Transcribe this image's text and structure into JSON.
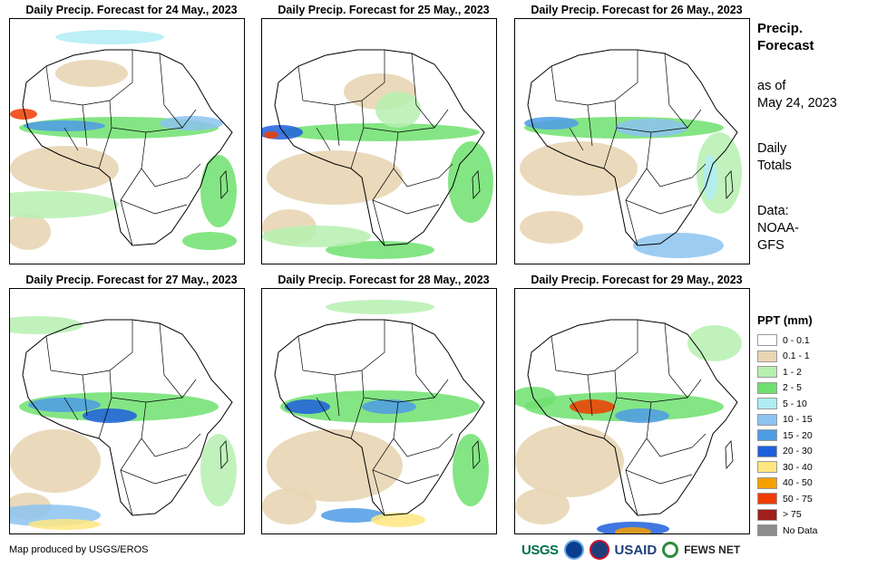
{
  "panels": [
    {
      "title": "Daily Precip. Forecast for 24 May., 2023"
    },
    {
      "title": "Daily Precip. Forecast for 25 May., 2023"
    },
    {
      "title": "Daily Precip. Forecast for 26 May., 2023"
    },
    {
      "title": "Daily Precip. Forecast for 27 May., 2023"
    },
    {
      "title": "Daily Precip. Forecast for 28 May., 2023"
    },
    {
      "title": "Daily Precip. Forecast for 29 May., 2023"
    }
  ],
  "side": {
    "title_line1": "Precip.",
    "title_line2": "Forecast",
    "asof_line1": "as of",
    "asof_line2": "May 24, 2023",
    "daily_line1": "Daily",
    "daily_line2": "Totals",
    "data_line1": "Data:",
    "data_line2": "NOAA-",
    "data_line3": "GFS"
  },
  "legend": {
    "title": "PPT (mm)",
    "items": [
      {
        "label": "0 - 0.1",
        "color": "#ffffff"
      },
      {
        "label": "0.1 - 1",
        "color": "#e8d6b4"
      },
      {
        "label": "1 - 2",
        "color": "#b6f0b0"
      },
      {
        "label": "2 - 5",
        "color": "#6fe06f"
      },
      {
        "label": "5 - 10",
        "color": "#b0ecf4"
      },
      {
        "label": "10 - 15",
        "color": "#8cc3f0"
      },
      {
        "label": "15 - 20",
        "color": "#4e9be6"
      },
      {
        "label": "20 - 30",
        "color": "#1f5fdc"
      },
      {
        "label": "30 - 40",
        "color": "#ffe680"
      },
      {
        "label": "40 - 50",
        "color": "#f5a000"
      },
      {
        "label": "50 - 75",
        "color": "#f03c00"
      },
      {
        "label": "> 75",
        "color": "#a01e1e"
      },
      {
        "label": "No Data",
        "color": "#8c8c8c"
      }
    ]
  },
  "footer": {
    "credit": "Map produced by USGS/EROS",
    "logo_usgs": "USGS",
    "logo_usaid": "USAID",
    "logo_fews": "FEWS NET"
  }
}
